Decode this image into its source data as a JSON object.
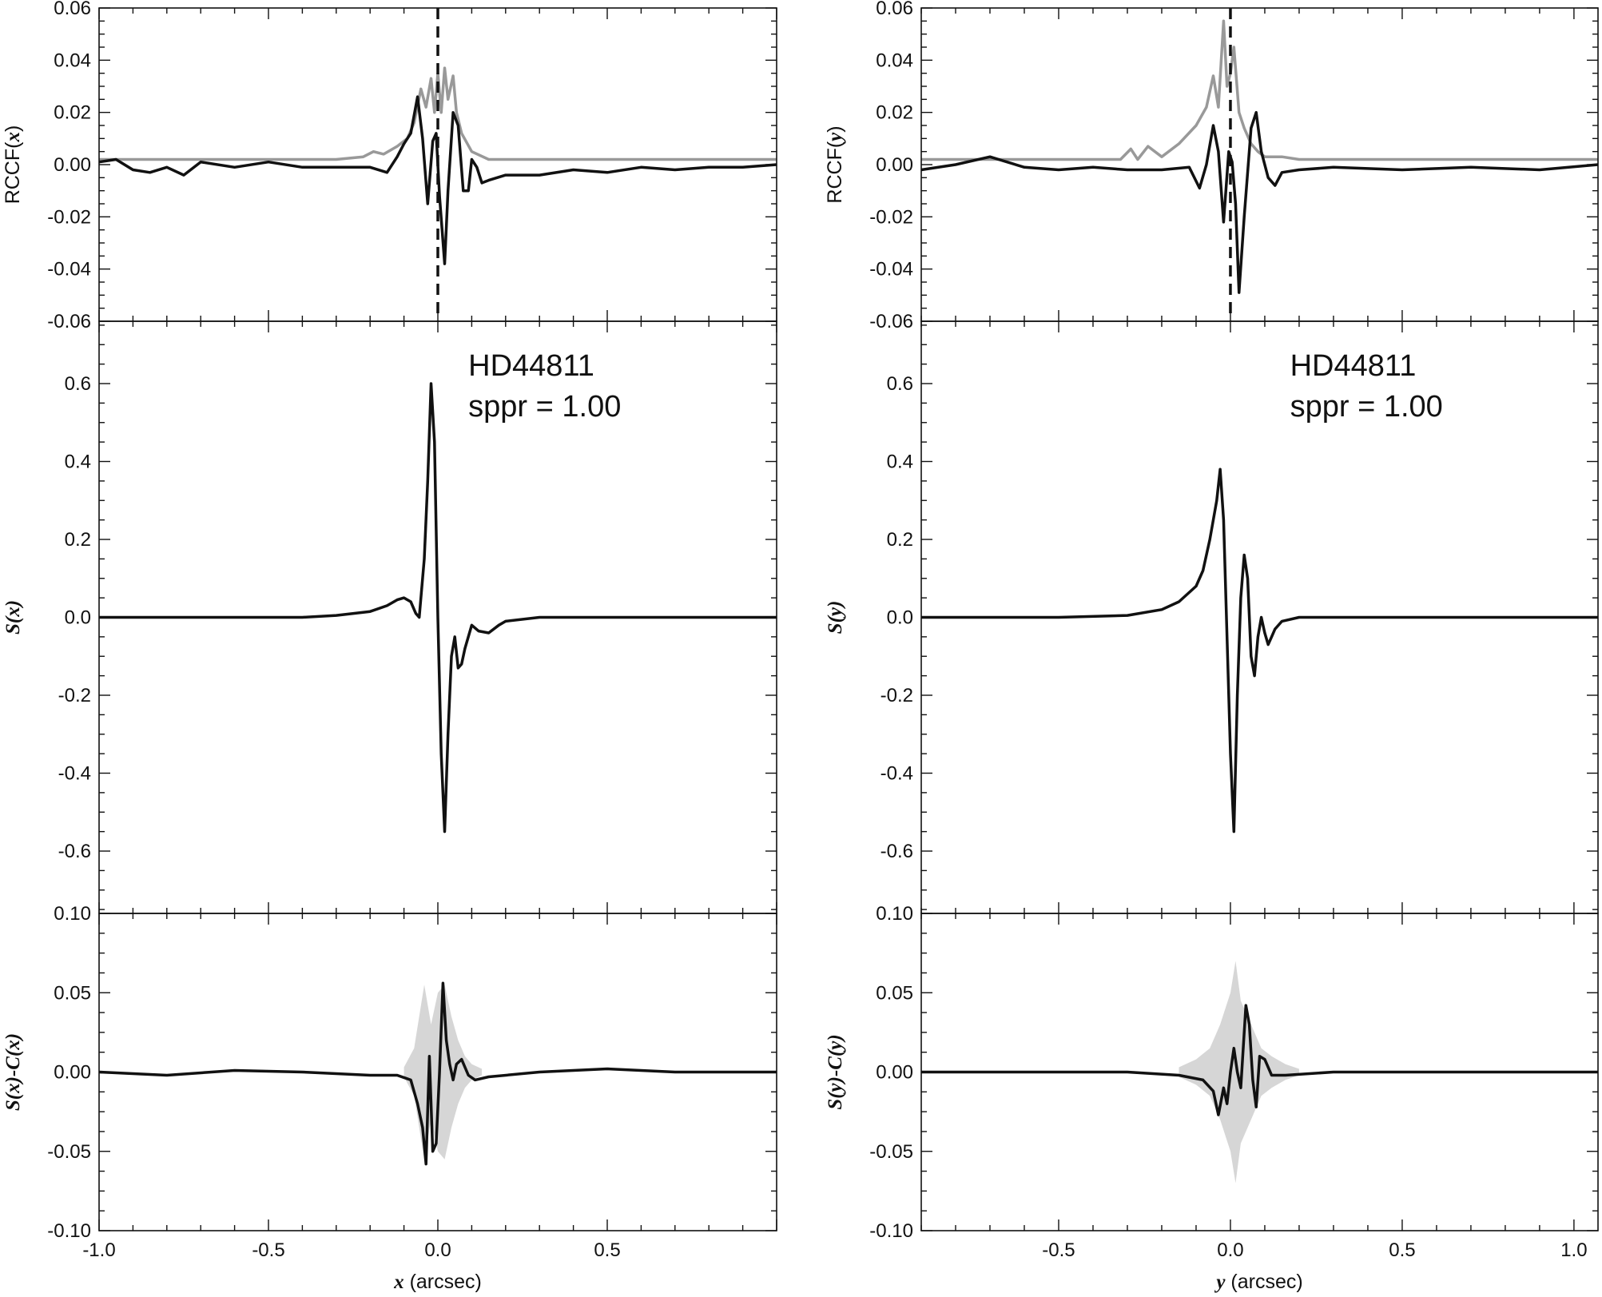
{
  "chart_data": [
    {
      "type": "line",
      "panel": "left-top",
      "ylabel": "RCCF(x)",
      "xlim": [
        -1.0,
        1.0
      ],
      "ylim": [
        -0.06,
        0.06
      ],
      "yticks": [
        -0.06,
        -0.04,
        -0.02,
        0.0,
        0.02,
        0.04,
        0.06
      ],
      "ytick_labels": [
        "-0.06",
        "-0.04",
        "-0.02",
        "0.00",
        "0.02",
        "0.04",
        "0.06"
      ],
      "vline_x": 0.0,
      "series": [
        {
          "color": "#999999",
          "x": [
            -1.0,
            -0.6,
            -0.3,
            -0.22,
            -0.19,
            -0.16,
            -0.12,
            -0.09,
            -0.07,
            -0.05,
            -0.035,
            -0.02,
            -0.01,
            0.0,
            0.01,
            0.02,
            0.03,
            0.045,
            0.055,
            0.07,
            0.1,
            0.15,
            0.3,
            0.6,
            1.0
          ],
          "y": [
            0.002,
            0.002,
            0.002,
            0.003,
            0.005,
            0.004,
            0.007,
            0.01,
            0.016,
            0.029,
            0.022,
            0.033,
            0.02,
            0.035,
            0.02,
            0.037,
            0.025,
            0.034,
            0.02,
            0.012,
            0.005,
            0.002,
            0.002,
            0.002,
            0.002
          ]
        },
        {
          "color": "#111111",
          "x": [
            -1.0,
            -0.95,
            -0.9,
            -0.85,
            -0.8,
            -0.75,
            -0.7,
            -0.6,
            -0.5,
            -0.4,
            -0.3,
            -0.2,
            -0.15,
            -0.12,
            -0.1,
            -0.08,
            -0.06,
            -0.045,
            -0.03,
            -0.015,
            -0.005,
            0.005,
            0.02,
            0.03,
            0.045,
            0.06,
            0.075,
            0.09,
            0.1,
            0.115,
            0.13,
            0.15,
            0.2,
            0.3,
            0.4,
            0.5,
            0.6,
            0.7,
            0.8,
            0.9,
            1.0
          ],
          "y": [
            0.001,
            0.002,
            -0.002,
            -0.003,
            -0.001,
            -0.004,
            0.001,
            -0.001,
            0.001,
            -0.001,
            -0.001,
            -0.001,
            -0.003,
            0.003,
            0.008,
            0.012,
            0.026,
            0.01,
            -0.015,
            0.009,
            0.012,
            -0.012,
            -0.038,
            -0.01,
            0.02,
            0.015,
            -0.01,
            -0.01,
            0.002,
            -0.001,
            -0.007,
            -0.006,
            -0.004,
            -0.004,
            -0.002,
            -0.003,
            -0.001,
            -0.002,
            -0.001,
            -0.001,
            0.0
          ]
        }
      ]
    },
    {
      "type": "line",
      "panel": "left-middle",
      "ylabel": "S(x)",
      "annotation": [
        "HD44811",
        "sppr = 1.00"
      ],
      "xlim": [
        -1.0,
        1.0
      ],
      "ylim": [
        -0.76,
        0.76
      ],
      "yticks": [
        -0.6,
        -0.4,
        -0.2,
        0.0,
        0.2,
        0.4,
        0.6
      ],
      "ytick_labels": [
        "-0.6",
        "-0.4",
        "-0.2",
        "0.0",
        "0.2",
        "0.4",
        "0.6"
      ],
      "series": [
        {
          "color": "#111111",
          "x": [
            -1.0,
            -0.6,
            -0.4,
            -0.3,
            -0.2,
            -0.15,
            -0.12,
            -0.1,
            -0.08,
            -0.065,
            -0.055,
            -0.04,
            -0.03,
            -0.02,
            -0.01,
            0.0,
            0.01,
            0.02,
            0.03,
            0.04,
            0.05,
            0.06,
            0.07,
            0.08,
            0.1,
            0.12,
            0.15,
            0.18,
            0.2,
            0.3,
            0.5,
            0.7,
            1.0
          ],
          "y": [
            0.0,
            0.0,
            0.0,
            0.005,
            0.015,
            0.03,
            0.045,
            0.05,
            0.04,
            0.01,
            0.0,
            0.15,
            0.35,
            0.6,
            0.45,
            0.0,
            -0.35,
            -0.55,
            -0.3,
            -0.1,
            -0.05,
            -0.13,
            -0.12,
            -0.08,
            -0.02,
            -0.035,
            -0.04,
            -0.02,
            -0.01,
            0.0,
            0.0,
            0.0,
            0.0
          ]
        }
      ]
    },
    {
      "type": "line",
      "panel": "left-bottom",
      "ylabel": "S(x)-C(x)",
      "xlabel": "x (arcsec)",
      "xlim": [
        -1.0,
        1.0
      ],
      "ylim": [
        -0.1,
        0.1
      ],
      "xticks": [
        -1.0,
        -0.5,
        0.0,
        0.5
      ],
      "xtick_labels": [
        "-1.0",
        "-0.5",
        "0.0",
        "0.5"
      ],
      "yticks": [
        -0.1,
        -0.05,
        0.0,
        0.05,
        0.1
      ],
      "ytick_labels": [
        "-0.10",
        "-0.05",
        "0.00",
        "0.05",
        "0.10"
      ],
      "band": {
        "color": "#d6d6d6",
        "x": [
          -0.1,
          -0.07,
          -0.04,
          -0.02,
          0.0,
          0.02,
          0.04,
          0.06,
          0.08,
          0.1,
          0.13
        ],
        "amplitude": [
          0.003,
          0.015,
          0.055,
          0.03,
          0.05,
          0.055,
          0.035,
          0.02,
          0.01,
          0.005,
          0.002
        ]
      },
      "series": [
        {
          "color": "#111111",
          "x": [
            -1.0,
            -0.8,
            -0.6,
            -0.4,
            -0.2,
            -0.12,
            -0.08,
            -0.06,
            -0.045,
            -0.035,
            -0.025,
            -0.015,
            -0.005,
            0.005,
            0.015,
            0.025,
            0.035,
            0.045,
            0.055,
            0.07,
            0.09,
            0.11,
            0.15,
            0.3,
            0.5,
            0.7,
            1.0
          ],
          "y": [
            0.0,
            -0.002,
            0.001,
            0.0,
            -0.002,
            -0.002,
            -0.005,
            -0.02,
            -0.035,
            -0.058,
            0.01,
            -0.05,
            -0.045,
            0.0,
            0.056,
            0.02,
            0.005,
            -0.005,
            0.005,
            0.008,
            -0.002,
            -0.005,
            -0.003,
            0.0,
            0.002,
            0.0,
            0.0
          ]
        }
      ]
    },
    {
      "type": "line",
      "panel": "right-top",
      "ylabel": "RCCF(y)",
      "xlim": [
        -0.9,
        1.07
      ],
      "ylim": [
        -0.06,
        0.06
      ],
      "yticks": [
        -0.06,
        -0.04,
        -0.02,
        0.0,
        0.02,
        0.04,
        0.06
      ],
      "ytick_labels": [
        "-0.06",
        "-0.04",
        "-0.02",
        "0.00",
        "0.02",
        "0.04",
        "0.06"
      ],
      "vline_x": 0.0,
      "series": [
        {
          "color": "#999999",
          "x": [
            -0.9,
            -0.5,
            -0.32,
            -0.29,
            -0.27,
            -0.24,
            -0.2,
            -0.15,
            -0.1,
            -0.07,
            -0.05,
            -0.035,
            -0.02,
            -0.01,
            0.0,
            0.01,
            0.025,
            0.04,
            0.06,
            0.08,
            0.1,
            0.15,
            0.2,
            0.3,
            0.5,
            0.8,
            1.07
          ],
          "y": [
            0.002,
            0.002,
            0.002,
            0.006,
            0.002,
            0.007,
            0.003,
            0.008,
            0.015,
            0.022,
            0.034,
            0.022,
            0.055,
            0.03,
            0.035,
            0.045,
            0.02,
            0.014,
            0.008,
            0.005,
            0.003,
            0.003,
            0.002,
            0.002,
            0.002,
            0.002,
            0.002
          ]
        },
        {
          "color": "#111111",
          "x": [
            -0.9,
            -0.8,
            -0.7,
            -0.6,
            -0.5,
            -0.4,
            -0.3,
            -0.2,
            -0.12,
            -0.09,
            -0.07,
            -0.05,
            -0.035,
            -0.02,
            -0.005,
            0.005,
            0.015,
            0.025,
            0.04,
            0.06,
            0.075,
            0.09,
            0.11,
            0.13,
            0.15,
            0.2,
            0.3,
            0.5,
            0.7,
            0.9,
            1.07
          ],
          "y": [
            -0.002,
            0.0,
            0.003,
            -0.001,
            -0.002,
            -0.001,
            -0.002,
            -0.002,
            -0.001,
            -0.009,
            0.0,
            0.015,
            0.005,
            -0.022,
            0.005,
            0.001,
            -0.015,
            -0.049,
            -0.02,
            0.014,
            0.02,
            0.005,
            -0.005,
            -0.008,
            -0.003,
            -0.002,
            -0.001,
            -0.002,
            -0.001,
            -0.002,
            0.0
          ]
        }
      ]
    },
    {
      "type": "line",
      "panel": "right-middle",
      "ylabel": "S(y)",
      "annotation": [
        "HD44811",
        "sppr = 1.00"
      ],
      "xlim": [
        -0.9,
        1.07
      ],
      "ylim": [
        -0.76,
        0.76
      ],
      "yticks": [
        -0.6,
        -0.4,
        -0.2,
        0.0,
        0.2,
        0.4,
        0.6
      ],
      "ytick_labels": [
        "-0.6",
        "-0.4",
        "-0.2",
        "0.0",
        "0.2",
        "0.4",
        "0.6"
      ],
      "series": [
        {
          "color": "#111111",
          "x": [
            -0.9,
            -0.5,
            -0.3,
            -0.2,
            -0.15,
            -0.1,
            -0.08,
            -0.06,
            -0.04,
            -0.03,
            -0.02,
            -0.01,
            0.0,
            0.01,
            0.02,
            0.03,
            0.04,
            0.05,
            0.06,
            0.07,
            0.08,
            0.09,
            0.1,
            0.11,
            0.12,
            0.13,
            0.15,
            0.2,
            0.3,
            0.6,
            1.07
          ],
          "y": [
            0.0,
            0.0,
            0.005,
            0.02,
            0.04,
            0.08,
            0.12,
            0.2,
            0.3,
            0.38,
            0.25,
            -0.05,
            -0.35,
            -0.55,
            -0.2,
            0.05,
            0.16,
            0.1,
            -0.1,
            -0.15,
            -0.05,
            0.0,
            -0.04,
            -0.07,
            -0.05,
            -0.03,
            -0.01,
            0.0,
            0.0,
            0.0,
            0.0
          ]
        }
      ]
    },
    {
      "type": "line",
      "panel": "right-bottom",
      "ylabel": "S(y)-C(y)",
      "xlabel": "y (arcsec)",
      "xlim": [
        -0.9,
        1.07
      ],
      "ylim": [
        -0.1,
        0.1
      ],
      "xticks": [
        -0.5,
        0.0,
        0.5,
        1.0
      ],
      "xtick_labels": [
        "-0.5",
        "0.0",
        "0.5",
        "1.0"
      ],
      "yticks": [
        -0.1,
        -0.05,
        0.0,
        0.05,
        0.1
      ],
      "ytick_labels": [
        "-0.10",
        "-0.05",
        "0.00",
        "0.05",
        "0.10"
      ],
      "band": {
        "color": "#d6d6d6",
        "x": [
          -0.15,
          -0.1,
          -0.06,
          -0.03,
          0.0,
          0.015,
          0.03,
          0.06,
          0.09,
          0.12,
          0.16,
          0.2
        ],
        "amplitude": [
          0.003,
          0.008,
          0.015,
          0.03,
          0.05,
          0.07,
          0.045,
          0.03,
          0.015,
          0.01,
          0.005,
          0.002
        ]
      },
      "series": [
        {
          "color": "#111111",
          "x": [
            -0.9,
            -0.6,
            -0.3,
            -0.15,
            -0.08,
            -0.05,
            -0.035,
            -0.02,
            -0.01,
            0.0,
            0.01,
            0.02,
            0.03,
            0.045,
            0.055,
            0.065,
            0.075,
            0.085,
            0.1,
            0.12,
            0.16,
            0.3,
            0.6,
            1.07
          ],
          "y": [
            0.0,
            0.0,
            0.0,
            -0.002,
            -0.005,
            -0.012,
            -0.027,
            -0.01,
            -0.02,
            0.0,
            0.015,
            0.0,
            -0.01,
            0.042,
            0.03,
            -0.005,
            -0.022,
            0.01,
            0.008,
            -0.002,
            -0.002,
            0.0,
            0.0,
            0.0
          ]
        }
      ]
    }
  ]
}
